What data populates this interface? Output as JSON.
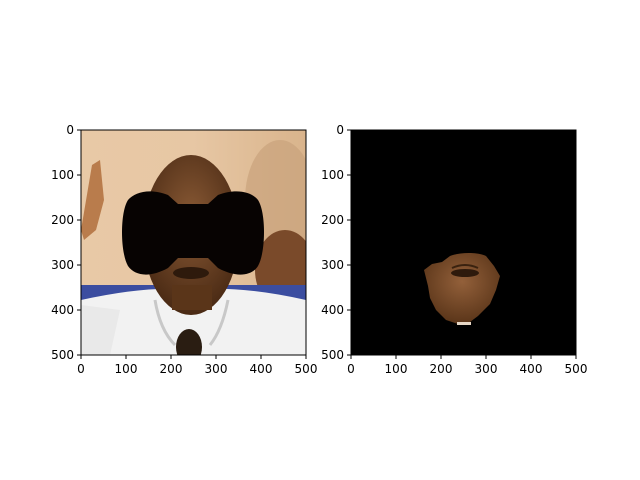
{
  "chart_data": [
    {
      "type": "image",
      "content": "photo of a person with a black bow-tie shaped mask covering the eyes",
      "xlim": [
        0,
        500
      ],
      "ylim": [
        500,
        0
      ],
      "xticks": [
        "0",
        "100",
        "200",
        "300",
        "400",
        "500"
      ],
      "yticks": [
        "0",
        "100",
        "200",
        "300",
        "400",
        "500"
      ],
      "title": "",
      "xlabel": "",
      "ylabel": ""
    },
    {
      "type": "image",
      "content": "black image with only the lower face region (mouth and chin) visible",
      "xlim": [
        0,
        500
      ],
      "ylim": [
        500,
        0
      ],
      "xticks": [
        "0",
        "100",
        "200",
        "300",
        "400",
        "500"
      ],
      "yticks": [
        "0",
        "100",
        "200",
        "300",
        "400",
        "500"
      ],
      "title": "",
      "xlabel": "",
      "ylabel": ""
    }
  ]
}
